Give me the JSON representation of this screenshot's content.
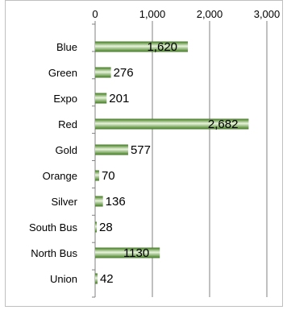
{
  "chart_data": {
    "type": "bar",
    "orientation": "horizontal",
    "categories": [
      "Blue",
      "Green",
      "Expo",
      "Red",
      "Gold",
      "Orange",
      "Silver",
      "South Bus",
      "North Bus",
      "Union"
    ],
    "values": [
      1620,
      276,
      201,
      2682,
      577,
      70,
      136,
      28,
      1130,
      42
    ],
    "data_labels": [
      "1,620",
      "276",
      "201",
      "2,682",
      "577",
      "70",
      "136",
      "28",
      "1130",
      "42"
    ],
    "x_ticks": [
      "0",
      "1,000",
      "2,000",
      "3,000"
    ],
    "xlim": [
      0,
      3000
    ],
    "x_axis_position": "top",
    "grid": true,
    "legend": false,
    "bar_color_dark": "#3f7a1c",
    "bar_color_light": "#e8f4dc",
    "gridline_color": "#808080",
    "axis_color": "#808080"
  }
}
